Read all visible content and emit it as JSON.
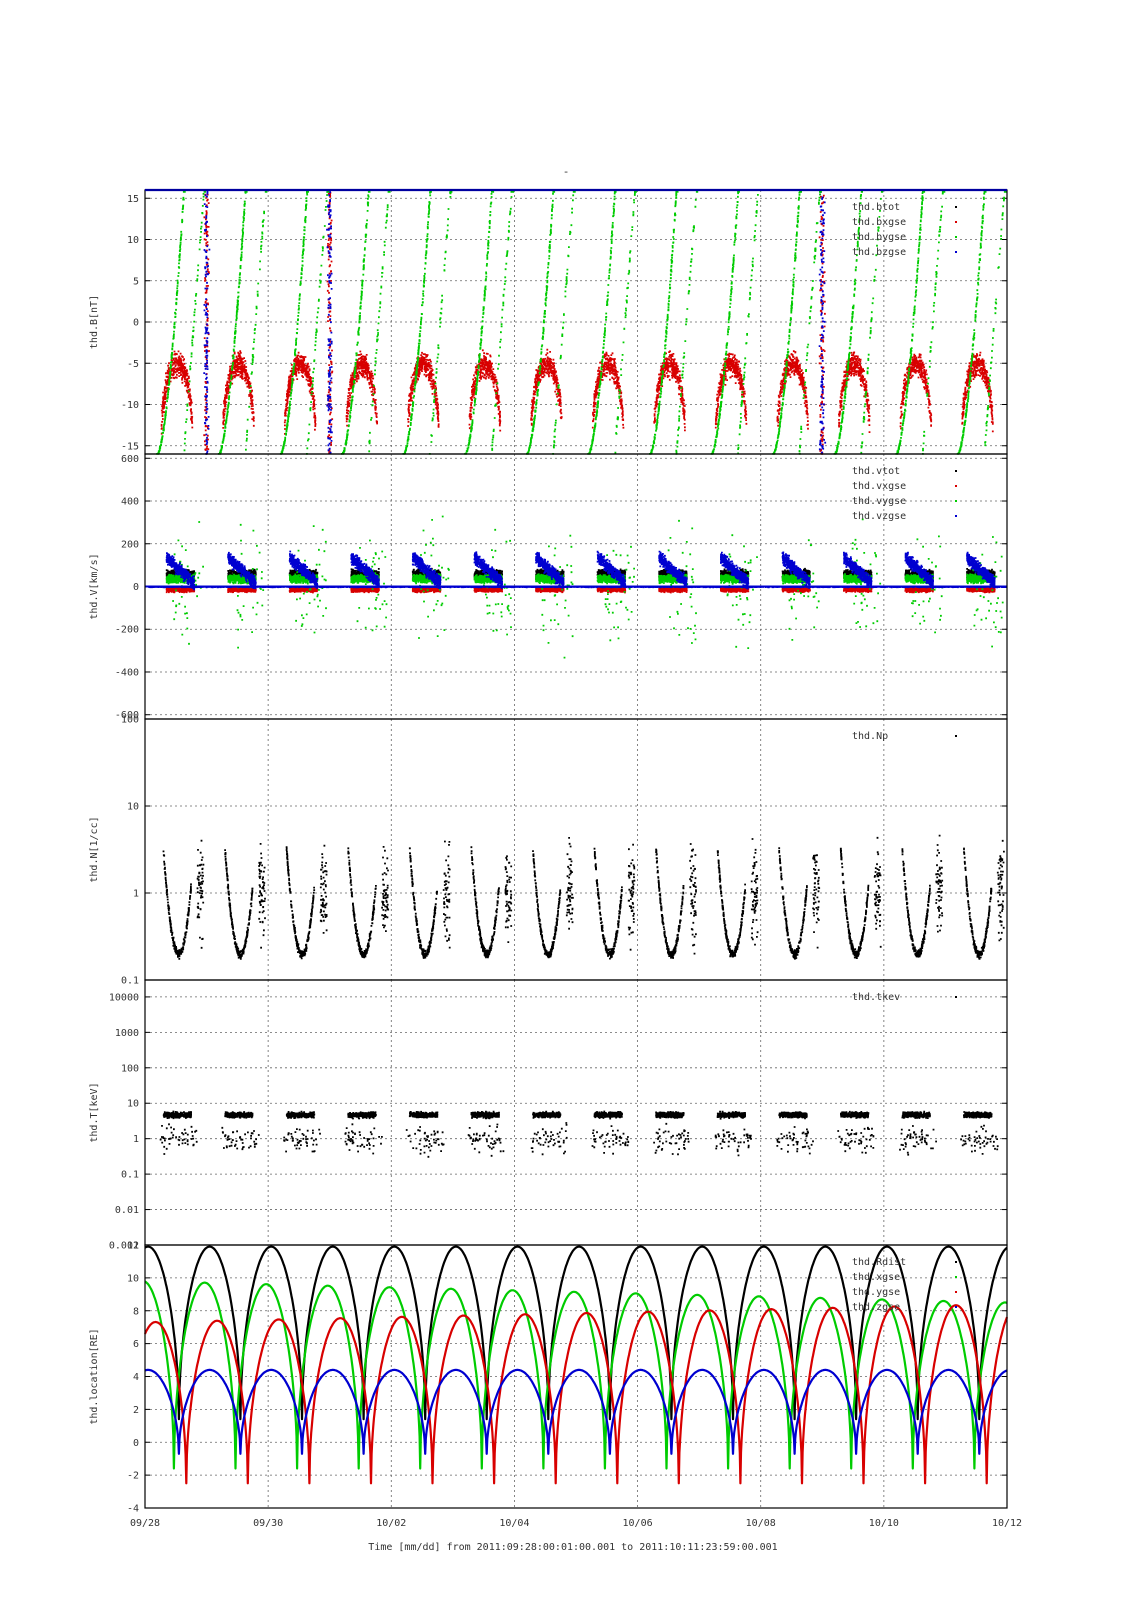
{
  "figure": {
    "title_mark": "-",
    "time_label": "Time [mm/dd]  from 2011:09:28:00:01:00.001  to  2011:10:11:23:59:00.001",
    "colors": {
      "black": "#000000",
      "red": "#d80000",
      "green": "#00cc00",
      "blue": "#0000d0",
      "grid": "#666666"
    }
  },
  "chart_data": [
    {
      "type": "scatter",
      "ylabel": "thd.B[nT]",
      "ylim": [
        -16,
        16
      ],
      "yticks": [
        -15,
        -10,
        -5,
        0,
        5,
        10,
        15
      ],
      "xlim": [
        "09/28",
        "10/12"
      ],
      "xticks": [
        "09/28",
        "09/30",
        "10/02",
        "10/04",
        "10/06",
        "10/08",
        "10/10",
        "10/12"
      ],
      "grid": true,
      "legend_position": "top-right",
      "series": [
        {
          "name": "thd.btot",
          "color": "#000000"
        },
        {
          "name": "thd.bxgse",
          "color": "#d80000"
        },
        {
          "name": "thd.bygse",
          "color": "#00cc00"
        },
        {
          "name": "thd.bzgse",
          "color": "#0000d0"
        }
      ]
    },
    {
      "type": "scatter",
      "ylabel": "thd.V[km/s]",
      "ylim": [
        -620,
        620
      ],
      "yticks": [
        -600,
        -400,
        -200,
        0,
        200,
        400,
        600
      ],
      "grid": true,
      "legend_position": "top-right",
      "series": [
        {
          "name": "thd.vtot",
          "color": "#000000"
        },
        {
          "name": "thd.vxgse",
          "color": "#d80000"
        },
        {
          "name": "thd.vygse",
          "color": "#00cc00"
        },
        {
          "name": "thd.vzgse",
          "color": "#0000d0"
        }
      ]
    },
    {
      "type": "scatter",
      "ylabel": "thd.N[1/cc]",
      "log_scale": true,
      "ylim": [
        0.1,
        100
      ],
      "yticks": [
        "0.1",
        "1",
        "10",
        "100"
      ],
      "grid": true,
      "legend_position": "top-right",
      "series": [
        {
          "name": "thd.Np",
          "color": "#000000"
        }
      ]
    },
    {
      "type": "scatter",
      "ylabel": "thd.T[keV]",
      "log_scale": true,
      "ylim": [
        0.001,
        30000
      ],
      "yticks": [
        "0.001",
        "0.01",
        "0.1",
        "1",
        "10",
        "100",
        "1000",
        "10000"
      ],
      "grid": true,
      "legend_position": "top-right",
      "series": [
        {
          "name": "thd.tkev",
          "color": "#000000"
        }
      ]
    },
    {
      "type": "line",
      "ylabel": "thd.location[RE]",
      "ylim": [
        -4,
        12
      ],
      "yticks": [
        -4,
        -2,
        0,
        2,
        4,
        6,
        8,
        10,
        12
      ],
      "grid": true,
      "legend_position": "top-right",
      "orbit_period_days": 1,
      "series": [
        {
          "name": "thd.Rdist",
          "color": "#000000",
          "peak": 11.9,
          "min": 1.4
        },
        {
          "name": "thd.xgse",
          "color": "#00cc00",
          "peak_start": 9.8,
          "peak_end": 8.5,
          "min": -1.6
        },
        {
          "name": "thd.ygse",
          "color": "#d80000",
          "peak_start": 7.3,
          "peak_end": 8.4,
          "min": -2.5
        },
        {
          "name": "thd.zgse",
          "color": "#0000d0",
          "peak": 4.4,
          "min": -0.7
        }
      ]
    }
  ]
}
